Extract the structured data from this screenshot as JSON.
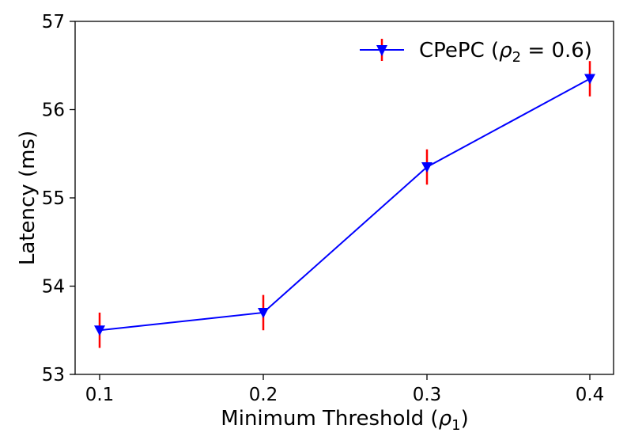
{
  "chart_data": {
    "type": "line",
    "title": "",
    "xlabel": "Minimum Threshold (ρ1)",
    "xlabel_parts": {
      "main": "Minimum Threshold (",
      "symbol": "ρ",
      "sub": "1",
      "close": ")"
    },
    "ylabel": "Latency (ms)",
    "x": [
      0.1,
      0.2,
      0.3,
      0.4
    ],
    "x_tick_labels": [
      "0.1",
      "0.2",
      "0.3",
      "0.4"
    ],
    "ylim": [
      53,
      57
    ],
    "y_ticks": [
      53,
      54,
      55,
      56,
      57
    ],
    "y_tick_labels": [
      "53",
      "54",
      "55",
      "56",
      "57"
    ],
    "series": [
      {
        "name": "CPePC (ρ2 = 0.6)",
        "legend_parts": {
          "main": "CPePC (",
          "symbol": "ρ",
          "sub": "2",
          "rest": " = 0.6)"
        },
        "values": [
          53.5,
          53.7,
          55.35,
          56.35
        ],
        "errors": [
          0.2,
          0.2,
          0.2,
          0.2
        ],
        "line_color": "#0000ff",
        "error_color": "#ff0000",
        "marker": "triangle-down"
      }
    ],
    "grid": false,
    "legend_position": "top-right"
  }
}
